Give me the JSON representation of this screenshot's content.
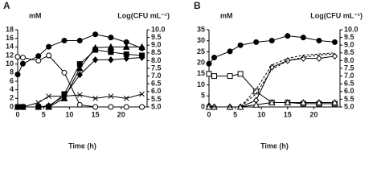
{
  "chart_data": [
    {
      "type": "line",
      "label": "A",
      "ylabel": "mM",
      "y2label": "Log(CFU mL⁻¹)",
      "xlabel": "Time (h)",
      "x": [
        0,
        1,
        4,
        6,
        9,
        12,
        15,
        18,
        21,
        24
      ],
      "xlim": [
        0,
        25
      ],
      "xticks": [
        0,
        5,
        10,
        15,
        20
      ],
      "ylim": [
        0,
        18
      ],
      "yticks": [
        0,
        2,
        4,
        6,
        8,
        10,
        12,
        14,
        16,
        18
      ],
      "y2lim": [
        5,
        10
      ],
      "y2ticks": [
        {
          "value": 5,
          "label": "5.0"
        },
        {
          "value": 5.5,
          "label": "5.5"
        },
        {
          "value": 6,
          "label": "6.0"
        },
        {
          "value": 6.5,
          "label": "6.5"
        },
        {
          "value": 7,
          "label": "7.0"
        },
        {
          "value": 7.5,
          "label": "7.5"
        },
        {
          "value": 8,
          "label": "8.0"
        },
        {
          "value": 8.5,
          "label": "8.5"
        },
        {
          "value": 9,
          "label": "9.0"
        },
        {
          "value": 9.5,
          "label": "9.5"
        },
        {
          "value": 10,
          "label": "10.0"
        }
      ],
      "series": [
        {
          "color": "#000000",
          "marker": "circle",
          "filled": true,
          "axis": "y2",
          "values": [
            7.1,
            7.8,
            8.3,
            8.9,
            9.3,
            9.3,
            9.7,
            9.5,
            9.2,
            8.8
          ]
        },
        {
          "color": "#000000",
          "marker": "circle",
          "filled": false,
          "values": [
            11.7,
            11.5,
            10.8,
            12,
            8,
            0.5,
            0,
            0,
            0,
            0
          ]
        },
        {
          "color": "#000000",
          "marker": "triangle",
          "filled": true,
          "values": [
            0,
            0,
            0,
            0,
            2,
            9,
            13.8,
            14,
            14,
            14
          ]
        },
        {
          "color": "#000000",
          "marker": "square",
          "filled": true,
          "values": [
            0,
            0,
            0,
            0,
            3,
            10,
            13.3,
            12.8,
            12.3,
            12
          ]
        },
        {
          "color": "#000000",
          "marker": "diamond",
          "filled": true,
          "values": [
            0,
            0,
            0,
            0.3,
            2.5,
            7.5,
            11,
            11,
            11.3,
            11.5
          ]
        },
        {
          "color": "#000000",
          "marker": "cross",
          "filled": true,
          "values": [
            0,
            0,
            1,
            2.5,
            2.5,
            2.8,
            2,
            2.5,
            2,
            3
          ]
        }
      ]
    },
    {
      "type": "line",
      "label": "B",
      "ylabel": "mM",
      "y2label": "Log(CFU mL⁻¹)",
      "xlabel": "Time (h)",
      "x": [
        0,
        1,
        4,
        6,
        9,
        12,
        15,
        18,
        21,
        24
      ],
      "xlim": [
        0,
        25
      ],
      "xticks": [
        0,
        5,
        10,
        15,
        20
      ],
      "ylim": [
        0,
        35
      ],
      "yticks": [
        0,
        5,
        10,
        15,
        20,
        25,
        30,
        35
      ],
      "y2lim": [
        5,
        10
      ],
      "y2ticks": [
        {
          "value": 5,
          "label": "5.0"
        },
        {
          "value": 5.5,
          "label": "5.5"
        },
        {
          "value": 6,
          "label": "6.0"
        },
        {
          "value": 6.5,
          "label": "6.5"
        },
        {
          "value": 7,
          "label": "7.0"
        },
        {
          "value": 7.5,
          "label": "7.5"
        },
        {
          "value": 8,
          "label": "8.0"
        },
        {
          "value": 8.5,
          "label": "8.5"
        },
        {
          "value": 9,
          "label": "9.0"
        },
        {
          "value": 9.5,
          "label": "9.5"
        },
        {
          "value": 10,
          "label": "10.0"
        }
      ],
      "series": [
        {
          "color": "#000000",
          "marker": "circle",
          "filled": true,
          "axis": "y2",
          "values": [
            7.8,
            8.2,
            8.6,
            9.0,
            9.2,
            9.3,
            9.6,
            9.5,
            9.3,
            9.2
          ]
        },
        {
          "color": "#000000",
          "marker": "square",
          "filled": false,
          "values": [
            15,
            14,
            14,
            15,
            7,
            2,
            2,
            1.5,
            1.5,
            1.5
          ]
        },
        {
          "color": "#000000",
          "marker": "diamond",
          "filled": false,
          "values": [
            0.5,
            0,
            0,
            0,
            3,
            18,
            21,
            22,
            22,
            23
          ]
        },
        {
          "color": "#000000",
          "marker": "triangle",
          "filled": false,
          "values": [
            0,
            0,
            0,
            0,
            1,
            2,
            2,
            2,
            2,
            2
          ]
        },
        {
          "color": "#000000",
          "marker": "none",
          "dashed": true,
          "values": [
            0,
            0,
            0,
            0,
            8,
            19,
            22,
            23.5,
            24,
            24.5
          ]
        },
        {
          "color": "#000000",
          "marker": "none",
          "dashed": true,
          "values": [
            0,
            0,
            0,
            0,
            6,
            17,
            21,
            22.5,
            23.5,
            24
          ]
        }
      ]
    }
  ]
}
